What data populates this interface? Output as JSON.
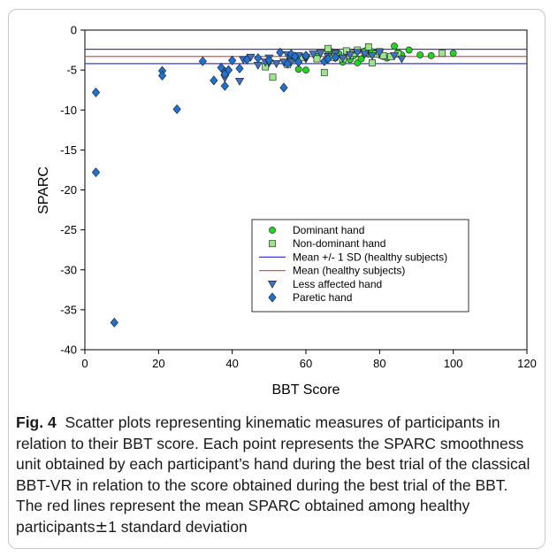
{
  "caption": {
    "label": "Fig. 4",
    "text_before_pm": "Scatter plots representing kinematic measures of participants in relation to their BBT score. Each point represents the SPARC smoothness unit obtained by each participant’s hand during the best trial of the classical BBT-VR in relation to the score obtained during the best trial of the BBT. The red lines represent the mean SPARC obtained among healthy participants",
    "pm_symbol": "±",
    "text_after_pm": "1 standard deviation"
  },
  "chart_data": {
    "type": "scatter",
    "xlabel": "BBT Score",
    "ylabel": "SPARC",
    "xlim": [
      0,
      120
    ],
    "ylim": [
      -40,
      0
    ],
    "xticks": [
      0,
      20,
      40,
      60,
      80,
      100,
      120
    ],
    "yticks": [
      0,
      -5,
      -10,
      -15,
      -20,
      -25,
      -30,
      -35,
      -40
    ],
    "grid": false,
    "legend_position": "center-right",
    "reference_lines": [
      {
        "name": "Mean +/- 1 SD (healthy subjects)",
        "y": -2.4,
        "color": "#3b3bd6"
      },
      {
        "name": "Mean +/- 1 SD (healthy subjects)",
        "y": -4.2,
        "color": "#3b3bd6"
      },
      {
        "name": "Mean (healthy subjects)",
        "y": -3.3,
        "color": "#e05050"
      }
    ],
    "series": [
      {
        "name": "Dominant hand",
        "marker": "circle",
        "color": "#22d322",
        "points": [
          [
            58,
            -4.9
          ],
          [
            60,
            -5.0
          ],
          [
            63,
            -3.3
          ],
          [
            66,
            -3.0
          ],
          [
            67,
            -2.7
          ],
          [
            68,
            -3.5
          ],
          [
            69,
            -3.0
          ],
          [
            70,
            -4.0
          ],
          [
            71,
            -2.8
          ],
          [
            72,
            -3.7
          ],
          [
            73,
            -3.2
          ],
          [
            74,
            -4.1
          ],
          [
            75,
            -3.6
          ],
          [
            76,
            -2.6
          ],
          [
            77,
            -3.0
          ],
          [
            78,
            -2.7
          ],
          [
            79,
            -2.9
          ],
          [
            80,
            -3.1
          ],
          [
            81,
            -3.3
          ],
          [
            82,
            -3.5
          ],
          [
            84,
            -2.0
          ],
          [
            85,
            -2.8
          ],
          [
            86,
            -3.1
          ],
          [
            88,
            -2.5
          ],
          [
            91,
            -3.1
          ],
          [
            94,
            -3.2
          ],
          [
            100,
            -2.9
          ]
        ]
      },
      {
        "name": "Non-dominant hand",
        "marker": "square",
        "color": "#9be58c",
        "points": [
          [
            49,
            -4.6
          ],
          [
            51,
            -5.9
          ],
          [
            55,
            -4.3
          ],
          [
            56,
            -3.3
          ],
          [
            57,
            -3.6
          ],
          [
            59,
            -3.4
          ],
          [
            63,
            -3.6
          ],
          [
            65,
            -5.3
          ],
          [
            66,
            -2.3
          ],
          [
            67,
            -3.4
          ],
          [
            68,
            -2.9
          ],
          [
            70,
            -3.6
          ],
          [
            71,
            -2.6
          ],
          [
            72,
            -3.2
          ],
          [
            73,
            -2.9
          ],
          [
            74,
            -2.5
          ],
          [
            76,
            -2.8
          ],
          [
            77,
            -2.1
          ],
          [
            78,
            -4.1
          ],
          [
            79,
            -3.0
          ],
          [
            80,
            -2.7
          ],
          [
            81,
            -3.2
          ],
          [
            83,
            -3.3
          ],
          [
            85,
            -3.0
          ],
          [
            97,
            -2.9
          ]
        ]
      },
      {
        "name": "Less affected hand",
        "marker": "triangle-down",
        "color": "#3f72c4",
        "points": [
          [
            43,
            -3.7
          ],
          [
            45,
            -3.4
          ],
          [
            47,
            -4.4
          ],
          [
            49,
            -4.0
          ],
          [
            50,
            -3.5
          ],
          [
            52,
            -4.2
          ],
          [
            54,
            -4.0
          ],
          [
            55,
            -3.1
          ],
          [
            56,
            -3.5
          ],
          [
            58,
            -3.2
          ],
          [
            60,
            -3.6
          ],
          [
            62,
            -3.0
          ],
          [
            64,
            -2.9
          ],
          [
            66,
            -3.3
          ],
          [
            68,
            -2.9
          ],
          [
            70,
            -3.5
          ],
          [
            72,
            -3.1
          ],
          [
            74,
            -2.8
          ],
          [
            76,
            -3.0
          ],
          [
            78,
            -3.2
          ],
          [
            80,
            -2.8
          ],
          [
            84,
            -3.2
          ],
          [
            86,
            -3.6
          ],
          [
            42,
            -6.4
          ],
          [
            38,
            -6.0
          ],
          [
            50,
            -4.1
          ],
          [
            56,
            -4.0
          ],
          [
            60,
            -3.4
          ]
        ]
      },
      {
        "name": "Paretic hand",
        "marker": "diamond",
        "color": "#1e73d2",
        "points": [
          [
            3,
            -7.8
          ],
          [
            3,
            -17.8
          ],
          [
            8,
            -36.6
          ],
          [
            21,
            -5.1
          ],
          [
            21,
            -5.7
          ],
          [
            25,
            -9.9
          ],
          [
            32,
            -3.9
          ],
          [
            35,
            -6.3
          ],
          [
            37,
            -4.7
          ],
          [
            38,
            -5.2
          ],
          [
            38,
            -7.0
          ],
          [
            39,
            -5.0
          ],
          [
            40,
            -3.8
          ],
          [
            42,
            -4.8
          ],
          [
            44,
            -3.7
          ],
          [
            47,
            -3.5
          ],
          [
            50,
            -3.8
          ],
          [
            53,
            -2.8
          ],
          [
            54,
            -7.2
          ],
          [
            55,
            -4.2
          ],
          [
            56,
            -3.0
          ],
          [
            57,
            -3.3
          ],
          [
            58,
            -4.0
          ],
          [
            60,
            -3.2
          ],
          [
            65,
            -3.9
          ],
          [
            66,
            -3.6
          ],
          [
            68,
            -3.4
          ],
          [
            38,
            -5.5
          ]
        ]
      }
    ]
  }
}
